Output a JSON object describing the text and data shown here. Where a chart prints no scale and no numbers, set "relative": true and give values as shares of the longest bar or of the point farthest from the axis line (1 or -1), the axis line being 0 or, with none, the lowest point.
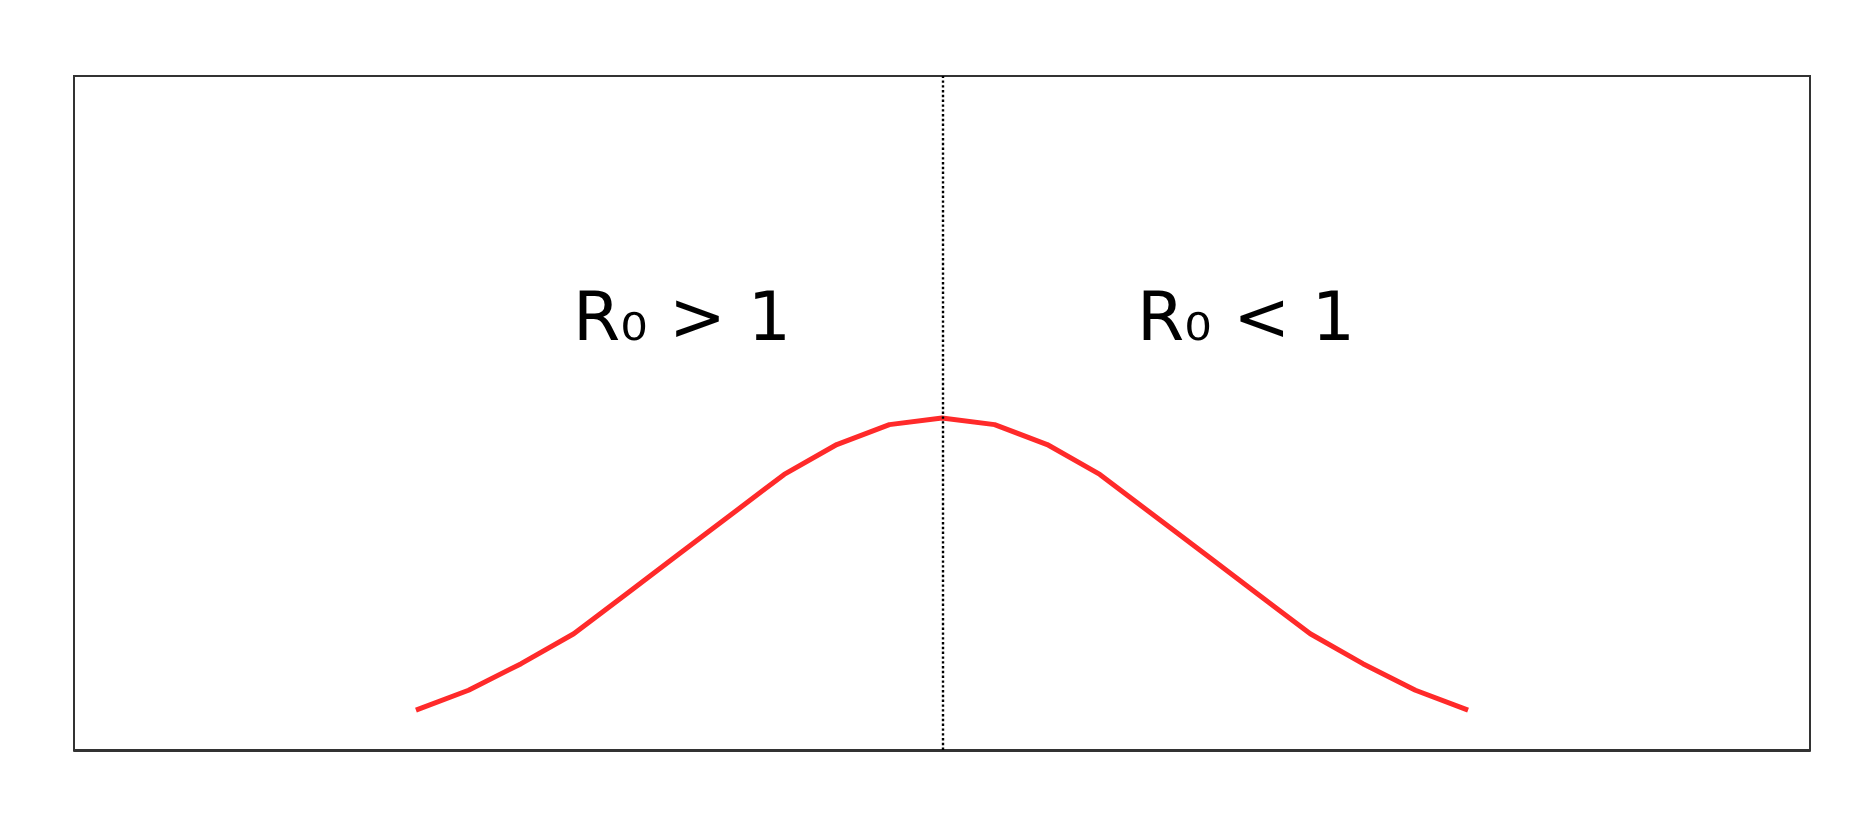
{
  "chart_data": {
    "type": "line",
    "relative": true,
    "categories": [
      null,
      null,
      null,
      null,
      null,
      null,
      null,
      null,
      null,
      null,
      null,
      null,
      null,
      null,
      null,
      null,
      null,
      null,
      null,
      null,
      null,
      null,
      null,
      null,
      null,
      null,
      null,
      null,
      null,
      null,
      null,
      null,
      null
    ],
    "series": [
      {
        "color": "#ff2a2a",
        "values": [
          null,
          null,
          null,
          null,
          null,
          null,
          0.12,
          0.18,
          0.26,
          0.35,
          0.47,
          0.59,
          0.71,
          0.83,
          0.92,
          0.98,
          1,
          0.98,
          0.92,
          0.83,
          0.71,
          0.59,
          0.47,
          0.35,
          0.26,
          0.18,
          0.12,
          null,
          null,
          null,
          null,
          null,
          null
        ]
      }
    ],
    "annotations": [
      "R₀ > 1",
      "R₀ < 1"
    ],
    "marker": "none",
    "grid": false
  }
}
